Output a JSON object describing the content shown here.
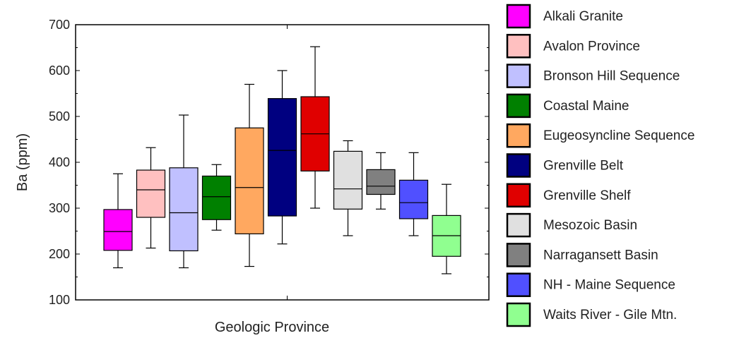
{
  "chart_data": {
    "type": "box",
    "title": "",
    "xlabel": "Geologic Province",
    "ylabel": "Ba (ppm)",
    "ylim": [
      100,
      700
    ],
    "yticks": [
      100,
      200,
      300,
      400,
      500,
      600,
      700
    ],
    "grid": false,
    "legend_position": "right",
    "series": [
      {
        "name": "Alkali Granite",
        "color": "#ff00ff",
        "min": 170,
        "q1": 208,
        "median": 249,
        "q3": 297,
        "max": 375
      },
      {
        "name": "Avalon Province",
        "color": "#ffc0c0",
        "min": 213,
        "q1": 280,
        "median": 340,
        "q3": 383,
        "max": 432
      },
      {
        "name": "Bronson Hill Sequence",
        "color": "#c0c0ff",
        "min": 170,
        "q1": 207,
        "median": 290,
        "q3": 388,
        "max": 503
      },
      {
        "name": "Coastal Maine",
        "color": "#008000",
        "min": 252,
        "q1": 275,
        "median": 325,
        "q3": 370,
        "max": 395
      },
      {
        "name": "Eugeosyncline Sequence",
        "color": "#ffa860",
        "min": 173,
        "q1": 244,
        "median": 345,
        "q3": 475,
        "max": 570
      },
      {
        "name": "Grenville Belt",
        "color": "#000080",
        "min": 222,
        "q1": 283,
        "median": 426,
        "q3": 539,
        "max": 600
      },
      {
        "name": "Grenville Shelf",
        "color": "#e00000",
        "min": 300,
        "q1": 381,
        "median": 462,
        "q3": 543,
        "max": 652
      },
      {
        "name": "Mesozoic Basin",
        "color": "#e0e0e0",
        "min": 240,
        "q1": 298,
        "median": 342,
        "q3": 424,
        "max": 447
      },
      {
        "name": "Narragansett Basin",
        "color": "#808080",
        "min": 298,
        "q1": 330,
        "median": 348,
        "q3": 384,
        "max": 421
      },
      {
        "name": "NH - Maine Sequence",
        "color": "#5050ff",
        "min": 240,
        "q1": 277,
        "median": 312,
        "q3": 361,
        "max": 421
      },
      {
        "name": "Waits River - Gile Mtn.",
        "color": "#90ff90",
        "min": 157,
        "q1": 195,
        "median": 240,
        "q3": 284,
        "max": 352
      }
    ]
  }
}
